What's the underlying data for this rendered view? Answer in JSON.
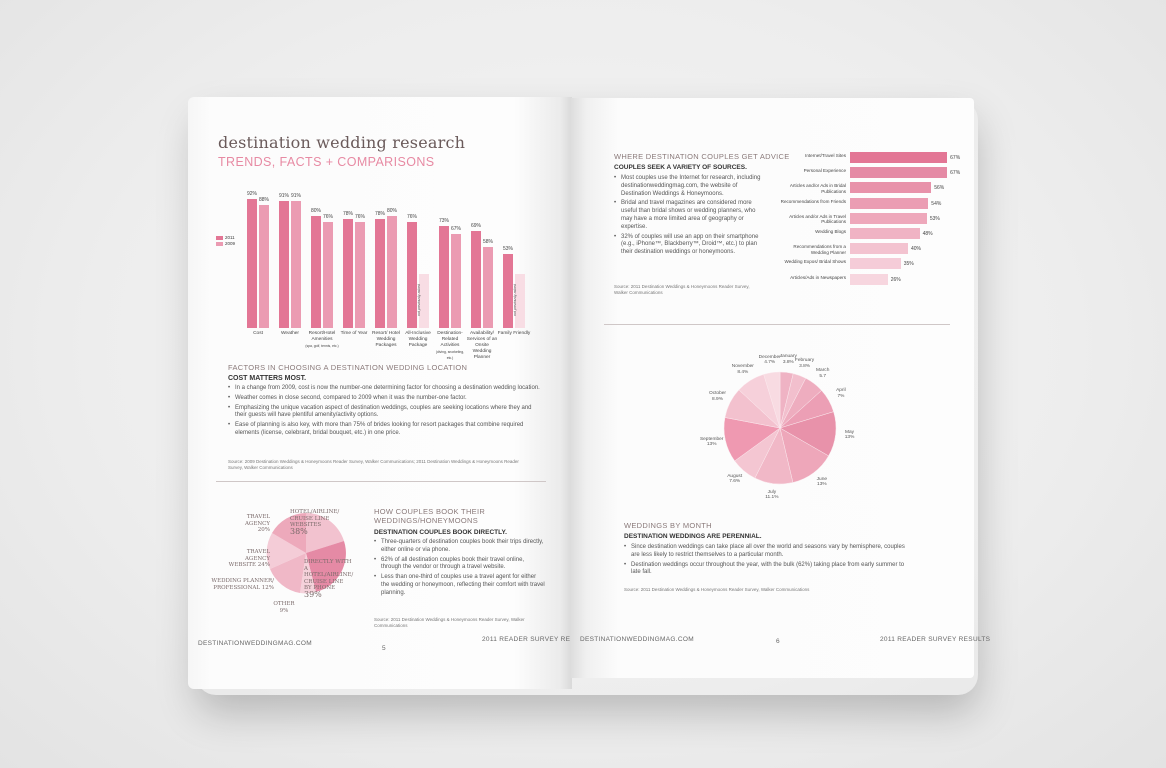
{
  "colors": {
    "dark": "#e37695",
    "mid": "#eb9bb2",
    "light": "#f2c2cf",
    "pale": "#f8dde4"
  },
  "left": {
    "title": "destination wedding research",
    "subtitle": "TRENDS, FACTS + COMPARISONS",
    "legend": [
      "2011",
      "2009"
    ],
    "bars": [
      {
        "cat": "Cost",
        "v2011": 92,
        "v2009": "88%"
      },
      {
        "cat": "Weather",
        "v2011": 91,
        "v2009": "91%"
      },
      {
        "cat": "Resort/Hotel Amenities",
        "note": "(spa, golf, tennis, etc.)",
        "v2011": 80,
        "v2009": "76%"
      },
      {
        "cat": "Time of Year",
        "v2011": 78,
        "v2009": "76%"
      },
      {
        "cat": "Resort/ Hotel Wedding Packages",
        "v2011": 78,
        "v2009": "80%"
      },
      {
        "cat": "All-Inclusive Wedding Package",
        "v2011": 76,
        "v2009": "not previously asked"
      },
      {
        "cat": "Destination-Related Activities",
        "note": "(diving, snorkeling, etc.)",
        "v2011": 73,
        "v2009": "67%"
      },
      {
        "cat": "Availability/ Services of an Onsite Wedding Planner",
        "v2011": 69,
        "v2009": "58%"
      },
      {
        "cat": "Family Friendly",
        "v2011": 53,
        "v2009": "not previously asked"
      }
    ],
    "labels2011": [
      "92%",
      "91%",
      "80%",
      "78%",
      "78%",
      "76%",
      "73%",
      "69%",
      "53%"
    ],
    "factors": {
      "section": "FACTORS IN CHOOSING A DESTINATION WEDDING LOCATION",
      "head": "COST MATTERS MOST.",
      "bullets": [
        "In a change from 2009, cost is now the number-one determining factor for choosing a destination wedding location.",
        "Weather comes in close second, compared to 2009 when it was the number-one factor.",
        "Emphasizing the unique vacation aspect of destination weddings, couples are seeking locations where they and their guests will have plentiful amenity/activity options.",
        "Ease of planning is also key, with more than 75% of brides looking for resort packages that combine required elements (license, celebrant, bridal bouquet, etc.) in one price."
      ],
      "source": "Source: 2009 Destination Weddings & Honeymoons Reader Survey, Walker Communications; 2011 Destination Weddings & Honeymoons Reader Survey, Walker Communications"
    },
    "pie": [
      {
        "label": "TRAVEL AGENCY",
        "pct": "20%"
      },
      {
        "label": "HOTEL/AIRLINE/ CRUISE LINE WEBSITES",
        "pct": "38%"
      },
      {
        "label": "TRAVEL AGENCY WEBSITE",
        "pct": "24%"
      },
      {
        "label": "WEDDING PLANNER/ PROFESSIONAL",
        "pct": "12%"
      },
      {
        "label": "DIRECTLY WITH A HOTEL/AIRLINE/ CRUISE LINE BY PHONE",
        "pct": "39%"
      },
      {
        "label": "OTHER",
        "pct": "9%"
      }
    ],
    "booking": {
      "section": "HOW COUPLES BOOK THEIR WEDDINGS/HONEYMOONS",
      "head": "DESTINATION COUPLES BOOK DIRECTLY.",
      "bullets": [
        "Three-quarters of destination couples book their trips directly, either online or via phone.",
        "62% of all destination couples book their travel online, through the vendor or through a travel website.",
        "Less than one-third of couples use a travel agent for either the wedding or honeymoon, reflecting their comfort with travel planning."
      ],
      "source": "Source: 2011 Destination Weddings & Honeymoons Reader Survey, Walker Communications"
    },
    "footer": {
      "site": "DESTINATIONWEDDINGMAG.COM",
      "page": "5",
      "right": "2011 READER SURVEY RESULTS"
    }
  },
  "right": {
    "advice": {
      "section": "WHERE DESTINATION COUPLES GET ADVICE",
      "head": "COUPLES SEEK A VARIETY OF SOURCES.",
      "bullets": [
        "Most couples use the Internet for research, including destinationweddingmag.com, the website of Destination Weddings & Honeymoons.",
        "Bridal and travel magazines are considered more useful than bridal shows or wedding planners, who may have a more limited area of geography or expertise.",
        "32% of couples will use an app on their smartphone (e.g., iPhone™, Blackberry™, Droid™, etc.) to plan their destination weddings or honeymoons."
      ],
      "source": "Source: 2011 Destination Weddings & Honeymoons Reader Survey, Walker Communications"
    },
    "hbars": [
      {
        "label": "Internet/Travel Sites",
        "value": 67,
        "text": "67%"
      },
      {
        "label": "Personal Experience",
        "value": 67,
        "text": "67%"
      },
      {
        "label": "Articles and/or Ads in Bridal Publications",
        "value": 56,
        "text": "56%"
      },
      {
        "label": "Recommendations from Friends",
        "value": 54,
        "text": "54%"
      },
      {
        "label": "Articles and/or Ads in Travel Publications",
        "value": 53,
        "text": "53%"
      },
      {
        "label": "Wedding Blogs",
        "value": 48,
        "text": "48%"
      },
      {
        "label": "Recommendations from a Wedding Planner",
        "value": 40,
        "text": "40%"
      },
      {
        "label": "Wedding Expos/ Bridal Shows",
        "value": 35,
        "text": "35%"
      },
      {
        "label": "Articles/Ads in Newspapers",
        "value": 26,
        "text": "26%"
      }
    ],
    "months": [
      {
        "m": "January",
        "v": "3.8%",
        "p": 3.8
      },
      {
        "m": "February",
        "v": "3.8%",
        "p": 3.8
      },
      {
        "m": "March",
        "v": "5.7",
        "p": 5.7
      },
      {
        "m": "April",
        "v": "7%",
        "p": 7
      },
      {
        "m": "May",
        "v": "13%",
        "p": 13
      },
      {
        "m": "June",
        "v": "13%",
        "p": 13
      },
      {
        "m": "July",
        "v": "11.1%",
        "p": 11.1
      },
      {
        "m": "August",
        "v": "7.6%",
        "p": 7.6
      },
      {
        "m": "September",
        "v": "13%",
        "p": 13
      },
      {
        "m": "October",
        "v": "8.9%",
        "p": 8.9
      },
      {
        "m": "November",
        "v": "8.4%",
        "p": 8.4
      },
      {
        "m": "December",
        "v": "4.7%",
        "p": 4.7
      }
    ],
    "bymonth": {
      "section": "WEDDINGS BY MONTH",
      "head": "DESTINATION WEDDINGS ARE PERENNIAL.",
      "bullets": [
        "Since destination weddings can take place all over the world and seasons vary by hemisphere, couples are less likely to restrict themselves to a particular month.",
        "Destination weddings occur throughout the year, with the bulk (62%) taking place from early summer to late fall."
      ],
      "source": "Source: 2011 Destination Weddings & Honeymoons Reader Survey, Walker Communications"
    },
    "footer": {
      "site": "DESTINATIONWEDDINGMAG.COM",
      "page": "6",
      "right": "2011 READER SURVEY RESULTS"
    }
  }
}
